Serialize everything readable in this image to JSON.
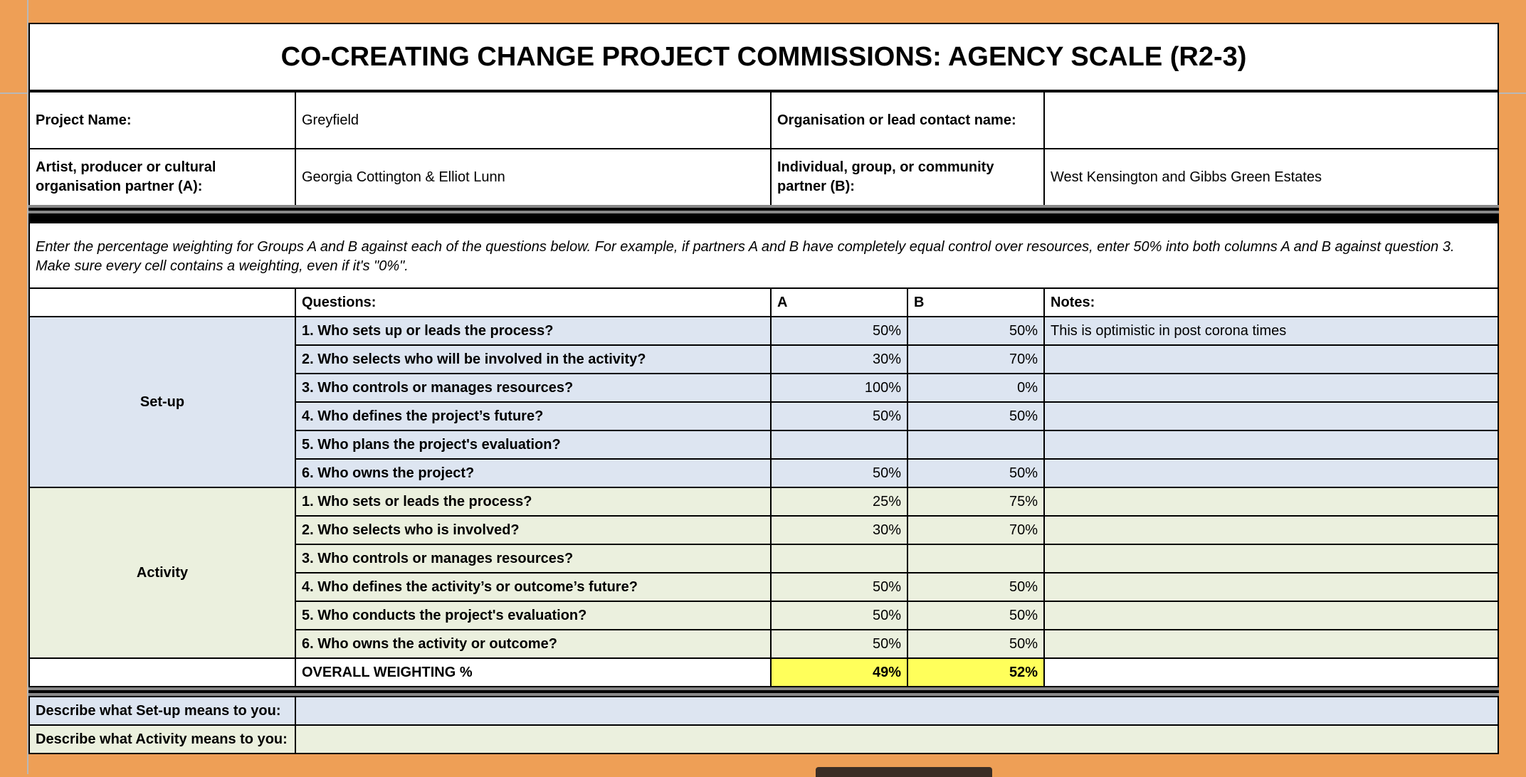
{
  "title": "CO-CREATING CHANGE PROJECT COMMISSIONS: AGENCY SCALE (R2-3)",
  "info": {
    "project_name_label": "Project Name:",
    "project_name_value": "Greyfield",
    "org_label": "Organisation or lead contact name:",
    "org_value": "",
    "partner_a_label": "Artist, producer or cultural organisation partner (A):",
    "partner_a_value": "Georgia Cottington & Elliot Lunn",
    "partner_b_label": "Individual, group, or community partner (B):",
    "partner_b_value": "West Kensington and Gibbs Green Estates"
  },
  "instructions": "Enter the percentage weighting for Groups A and B against each of the questions below. For example, if partners A and B have completely equal control over resources, enter 50% into both columns A and B against question 3. Make sure every cell contains a weighting, even if it's \"0%\".",
  "table": {
    "headers": {
      "questions": "Questions:",
      "a": "A",
      "b": "B",
      "notes": "Notes:"
    },
    "groups": [
      {
        "label": "Set-up",
        "rows": [
          {
            "q": "1. Who sets up or leads the process?",
            "a": "50%",
            "b": "50%",
            "notes": "This is optimistic in post corona times"
          },
          {
            "q": "2. Who selects who will be involved in the activity?",
            "a": "30%",
            "b": "70%",
            "notes": ""
          },
          {
            "q": "3. Who controls or manages resources?",
            "a": "100%",
            "b": "0%",
            "notes": ""
          },
          {
            "q": "4. Who defines the project’s future?",
            "a": "50%",
            "b": "50%",
            "notes": ""
          },
          {
            "q": "5. Who plans the project's evaluation?",
            "a": "",
            "b": "",
            "notes": ""
          },
          {
            "q": "6. Who owns the project?",
            "a": "50%",
            "b": "50%",
            "notes": ""
          }
        ]
      },
      {
        "label": "Activity",
        "rows": [
          {
            "q": "1. Who sets or leads the process?",
            "a": "25%",
            "b": "75%",
            "notes": ""
          },
          {
            "q": "2. Who selects who is involved?",
            "a": "30%",
            "b": "70%",
            "notes": ""
          },
          {
            "q": "3. Who controls or manages resources?",
            "a": "",
            "b": "",
            "notes": ""
          },
          {
            "q": "4. Who defines the activity’s or outcome’s future?",
            "a": "50%",
            "b": "50%",
            "notes": ""
          },
          {
            "q": "5. Who conducts the project's evaluation?",
            "a": "50%",
            "b": "50%",
            "notes": ""
          },
          {
            "q": "6. Who owns the activity or outcome?",
            "a": "50%",
            "b": "50%",
            "notes": ""
          }
        ]
      }
    ],
    "overall": {
      "label": "OVERALL WEIGHTING %",
      "a": "49%",
      "b": "52%"
    }
  },
  "describe": {
    "setup_label": "Describe what Set-up means to you:",
    "setup_value": "",
    "activity_label": "Describe what Activity means to you:",
    "activity_value": ""
  },
  "colors": {
    "background": "#ee9f56",
    "setup_fill": "#dde5f1",
    "activity_fill": "#ebf0de",
    "total_fill": "#ffff5b"
  }
}
